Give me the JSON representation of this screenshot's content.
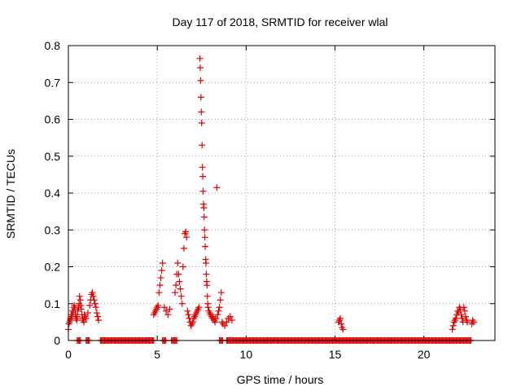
{
  "chart_data": {
    "type": "scatter",
    "title": "Day 117 of 2018, SRMTID for receiver wlal",
    "xlabel": "GPS time / hours",
    "ylabel": "SRMTID / TECUs",
    "xlim": [
      0,
      24
    ],
    "ylim": [
      0,
      0.8
    ],
    "xticks": [
      0,
      5,
      10,
      15,
      20
    ],
    "yticks": [
      0,
      0.1,
      0.2,
      0.3,
      0.4,
      0.5,
      0.6,
      0.7,
      0.8
    ],
    "xtick_labels": [
      "0",
      "5",
      "10",
      "15",
      "20"
    ],
    "ytick_labels": [
      "0",
      "0.1",
      "0.2",
      "0.3",
      "0.4",
      "0.5",
      "0.6",
      "0.7",
      "0.8"
    ],
    "marker": "+",
    "grid": true,
    "series": [
      {
        "name": "SRMTID",
        "color": "#e00000",
        "points": [
          [
            0.0,
            0.03
          ],
          [
            0.03,
            0.045
          ],
          [
            0.06,
            0.05
          ],
          [
            0.1,
            0.055
          ],
          [
            0.13,
            0.06
          ],
          [
            0.17,
            0.07
          ],
          [
            0.2,
            0.065
          ],
          [
            0.23,
            0.08
          ],
          [
            0.27,
            0.075
          ],
          [
            0.3,
            0.09
          ],
          [
            0.33,
            0.095
          ],
          [
            0.37,
            0.085
          ],
          [
            0.4,
            0.07
          ],
          [
            0.43,
            0.06
          ],
          [
            0.47,
            0.055
          ],
          [
            0.5,
            0.065
          ],
          [
            0.53,
            0.08
          ],
          [
            0.57,
            0.09
          ],
          [
            0.6,
            0.1
          ],
          [
            0.63,
            0.12
          ],
          [
            0.67,
            0.11
          ],
          [
            0.7,
            0.095
          ],
          [
            0.73,
            0.085
          ],
          [
            0.77,
            0.07
          ],
          [
            0.8,
            0.06
          ],
          [
            0.83,
            0.055
          ],
          [
            0.87,
            0.05
          ],
          [
            0.9,
            0.07
          ],
          [
            0.93,
            0.065
          ],
          [
            1.0,
            0.06
          ],
          [
            1.1,
            0.075
          ],
          [
            1.2,
            0.095
          ],
          [
            1.25,
            0.11
          ],
          [
            1.3,
            0.125
          ],
          [
            1.35,
            0.13
          ],
          [
            1.4,
            0.12
          ],
          [
            1.45,
            0.11
          ],
          [
            1.5,
            0.1
          ],
          [
            1.55,
            0.09
          ],
          [
            1.6,
            0.075
          ],
          [
            1.65,
            0.065
          ],
          [
            1.7,
            0.055
          ],
          [
            4.8,
            0.07
          ],
          [
            4.85,
            0.075
          ],
          [
            4.9,
            0.08
          ],
          [
            4.95,
            0.085
          ],
          [
            5.0,
            0.09
          ],
          [
            5.05,
            0.095
          ],
          [
            5.1,
            0.13
          ],
          [
            5.15,
            0.15
          ],
          [
            5.2,
            0.17
          ],
          [
            5.25,
            0.19
          ],
          [
            5.3,
            0.21
          ],
          [
            5.4,
            0.09
          ],
          [
            5.5,
            0.08
          ],
          [
            5.6,
            0.07
          ],
          [
            5.7,
            0.085
          ],
          [
            6.0,
            0.13
          ],
          [
            6.05,
            0.15
          ],
          [
            6.1,
            0.18
          ],
          [
            6.15,
            0.21
          ],
          [
            6.2,
            0.18
          ],
          [
            6.25,
            0.16
          ],
          [
            6.3,
            0.14
          ],
          [
            6.35,
            0.12
          ],
          [
            6.4,
            0.1
          ],
          [
            6.45,
            0.2
          ],
          [
            6.5,
            0.25
          ],
          [
            6.55,
            0.29
          ],
          [
            6.6,
            0.295
          ],
          [
            6.65,
            0.28
          ],
          [
            6.7,
            0.08
          ],
          [
            6.75,
            0.07
          ],
          [
            6.8,
            0.06
          ],
          [
            6.85,
            0.05
          ],
          [
            6.9,
            0.04
          ],
          [
            6.95,
            0.045
          ],
          [
            7.0,
            0.05
          ],
          [
            7.05,
            0.06
          ],
          [
            7.1,
            0.065
          ],
          [
            7.15,
            0.07
          ],
          [
            7.2,
            0.075
          ],
          [
            7.25,
            0.08
          ],
          [
            7.3,
            0.085
          ],
          [
            7.35,
            0.09
          ],
          [
            7.4,
            0.765
          ],
          [
            7.42,
            0.74
          ],
          [
            7.44,
            0.705
          ],
          [
            7.46,
            0.66
          ],
          [
            7.48,
            0.62
          ],
          [
            7.5,
            0.59
          ],
          [
            7.52,
            0.53
          ],
          [
            7.54,
            0.47
          ],
          [
            7.56,
            0.445
          ],
          [
            7.58,
            0.405
          ],
          [
            7.6,
            0.37
          ],
          [
            7.62,
            0.36
          ],
          [
            7.64,
            0.335
          ],
          [
            7.66,
            0.3
          ],
          [
            7.68,
            0.28
          ],
          [
            7.7,
            0.255
          ],
          [
            7.72,
            0.22
          ],
          [
            7.74,
            0.21
          ],
          [
            7.76,
            0.18
          ],
          [
            7.78,
            0.16
          ],
          [
            7.8,
            0.15
          ],
          [
            7.82,
            0.12
          ],
          [
            7.84,
            0.1
          ],
          [
            7.86,
            0.09
          ],
          [
            7.9,
            0.08
          ],
          [
            7.95,
            0.075
          ],
          [
            8.0,
            0.07
          ],
          [
            8.05,
            0.065
          ],
          [
            8.1,
            0.06
          ],
          [
            8.15,
            0.065
          ],
          [
            8.2,
            0.055
          ],
          [
            8.25,
            0.05
          ],
          [
            8.3,
            0.06
          ],
          [
            8.35,
            0.415
          ],
          [
            8.4,
            0.07
          ],
          [
            8.45,
            0.08
          ],
          [
            8.5,
            0.09
          ],
          [
            8.55,
            0.11
          ],
          [
            8.6,
            0.13
          ],
          [
            8.65,
            0.05
          ],
          [
            8.7,
            0.045
          ],
          [
            8.8,
            0.04
          ],
          [
            8.9,
            0.05
          ],
          [
            9.0,
            0.06
          ],
          [
            9.1,
            0.065
          ],
          [
            9.2,
            0.055
          ],
          [
            15.2,
            0.05
          ],
          [
            15.25,
            0.055
          ],
          [
            15.3,
            0.06
          ],
          [
            15.35,
            0.045
          ],
          [
            15.4,
            0.035
          ],
          [
            15.45,
            0.03
          ],
          [
            21.6,
            0.03
          ],
          [
            21.65,
            0.04
          ],
          [
            21.7,
            0.05
          ],
          [
            21.75,
            0.055
          ],
          [
            21.8,
            0.06
          ],
          [
            21.85,
            0.07
          ],
          [
            21.9,
            0.08
          ],
          [
            21.95,
            0.075
          ],
          [
            22.0,
            0.09
          ],
          [
            22.05,
            0.085
          ],
          [
            22.1,
            0.07
          ],
          [
            22.15,
            0.06
          ],
          [
            22.2,
            0.05
          ],
          [
            22.25,
            0.09
          ],
          [
            22.3,
            0.08
          ],
          [
            22.35,
            0.065
          ],
          [
            22.4,
            0.055
          ],
          [
            22.45,
            0.05
          ],
          [
            22.7,
            0.045
          ],
          [
            22.75,
            0.055
          ],
          [
            22.8,
            0.05
          ]
        ],
        "zero_segments": [
          [
            0.5,
            0.7
          ],
          [
            1.0,
            1.2
          ],
          [
            1.8,
            4.8
          ],
          [
            5.3,
            5.5
          ],
          [
            5.8,
            6.1
          ],
          [
            8.5,
            8.7
          ],
          [
            8.9,
            9.1
          ],
          [
            9.1,
            22.7
          ]
        ],
        "zero_spacing": 0.06
      }
    ]
  }
}
